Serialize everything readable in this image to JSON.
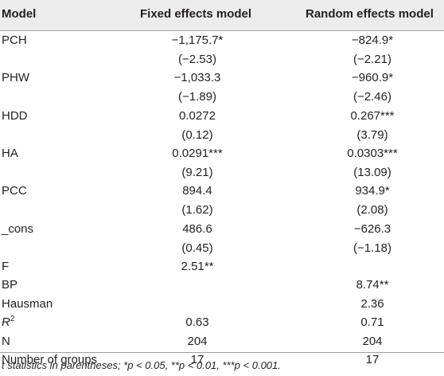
{
  "header": {
    "model": "Model",
    "fixed": "Fixed effects model",
    "random": "Random effects model"
  },
  "rows": [
    {
      "model": "PCH",
      "fixed": "−1,175.7*",
      "random": "−824.9*"
    },
    {
      "model": "",
      "fixed": "(−2.53)",
      "random": "(−2.21)"
    },
    {
      "model": "PHW",
      "fixed": "−1,033.3",
      "random": "−960.9*"
    },
    {
      "model": "",
      "fixed": "(−1.89)",
      "random": "(−2.46)"
    },
    {
      "model": "HDD",
      "fixed": "0.0272",
      "random": "0.267***"
    },
    {
      "model": "",
      "fixed": "(0.12)",
      "random": "(3.79)"
    },
    {
      "model": "HA",
      "fixed": "0.0291***",
      "random": "0.0303***"
    },
    {
      "model": "",
      "fixed": "(9.21)",
      "random": "(13.09)"
    },
    {
      "model": "PCC",
      "fixed": "894.4",
      "random": "934.9*"
    },
    {
      "model": "",
      "fixed": "(1.62)",
      "random": "(2.08)"
    },
    {
      "model": "_cons",
      "fixed": "486.6",
      "random": "−626.3"
    },
    {
      "model": "",
      "fixed": "(0.45)",
      "random": "(−1.18)"
    },
    {
      "model": "F",
      "fixed": "2.51**",
      "random": ""
    },
    {
      "model": "BP",
      "fixed": "",
      "random": "8.74**"
    },
    {
      "model": "Hausman",
      "fixed": "",
      "random": "2.36"
    },
    {
      "model": "R2",
      "fixed": "0.63",
      "random": "0.71"
    },
    {
      "model": "N",
      "fixed": "204",
      "random": "204"
    },
    {
      "model": "Number of groups",
      "fixed": "17",
      "random": "17"
    }
  ],
  "r2": {
    "base": "R",
    "sup": "2"
  },
  "footnote": "t statistics in parentheses; *p < 0.05, **p < 0.01, ***p < 0.001."
}
